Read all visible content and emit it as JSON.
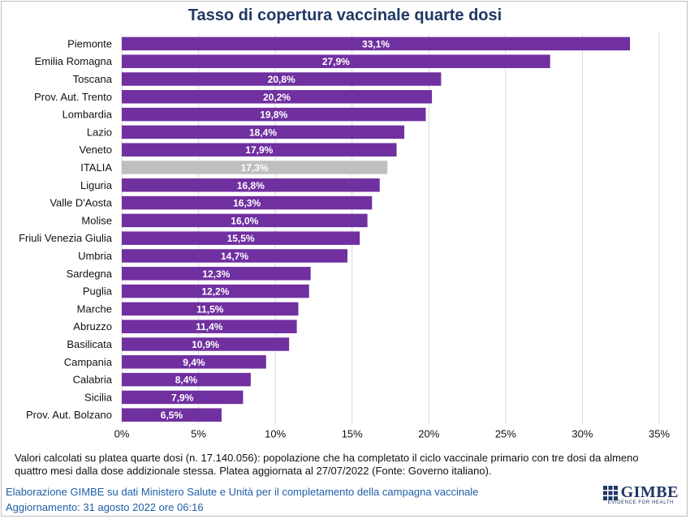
{
  "chart_data": {
    "type": "bar",
    "orientation": "horizontal",
    "title": "Tasso di copertura vaccinale quarte dosi",
    "categories": [
      "Piemonte",
      "Emilia Romagna",
      "Toscana",
      "Prov. Aut. Trento",
      "Lombardia",
      "Lazio",
      "Veneto",
      "ITALIA",
      "Liguria",
      "Valle D'Aosta",
      "Molise",
      "Friuli Venezia Giulia",
      "Umbria",
      "Sardegna",
      "Puglia",
      "Marche",
      "Abruzzo",
      "Basilicata",
      "Campania",
      "Calabria",
      "Sicilia",
      "Prov. Aut. Bolzano"
    ],
    "values": [
      33.1,
      27.9,
      20.8,
      20.2,
      19.8,
      18.4,
      17.9,
      17.3,
      16.8,
      16.3,
      16.0,
      15.5,
      14.7,
      12.3,
      12.2,
      11.5,
      11.4,
      10.9,
      9.4,
      8.4,
      7.9,
      6.5
    ],
    "value_labels": [
      "33,1%",
      "27,9%",
      "20,8%",
      "20,2%",
      "19,8%",
      "18,4%",
      "17,9%",
      "17,3%",
      "16,8%",
      "16,3%",
      "16,0%",
      "15,5%",
      "14,7%",
      "12,3%",
      "12,2%",
      "11,5%",
      "11,4%",
      "10,9%",
      "9,4%",
      "8,4%",
      "7,9%",
      "6,5%"
    ],
    "highlight_category": "ITALIA",
    "bar_color": "#7030a0",
    "highlight_color": "#bfbfbf",
    "xlim": [
      0,
      35
    ],
    "xticks": [
      0,
      5,
      10,
      15,
      20,
      25,
      30,
      35
    ],
    "xtick_labels": [
      "0%",
      "5%",
      "10%",
      "15%",
      "20%",
      "25%",
      "30%",
      "35%"
    ],
    "grid": true
  },
  "footnote": {
    "line1": "Valori calcolati su platea quarte dosi (n. 17.140.056): popolazione che ha completato il ciclo vaccinale primario con tre dosi da almeno",
    "line2": "quattro mesi dalla dose addizionale stessa. Platea aggiornata al 27/07/2022 (Fonte: Governo italiano)."
  },
  "credit": {
    "line1": "Elaborazione GIMBE su dati Ministero Salute e Unità per il completamento della campagna vaccinale",
    "line2": "Aggiornamento:  31 agosto 2022 ore 06:16"
  },
  "logo": {
    "name": "GIMBE",
    "tagline": "EVIDENCE FOR HEALTH"
  }
}
